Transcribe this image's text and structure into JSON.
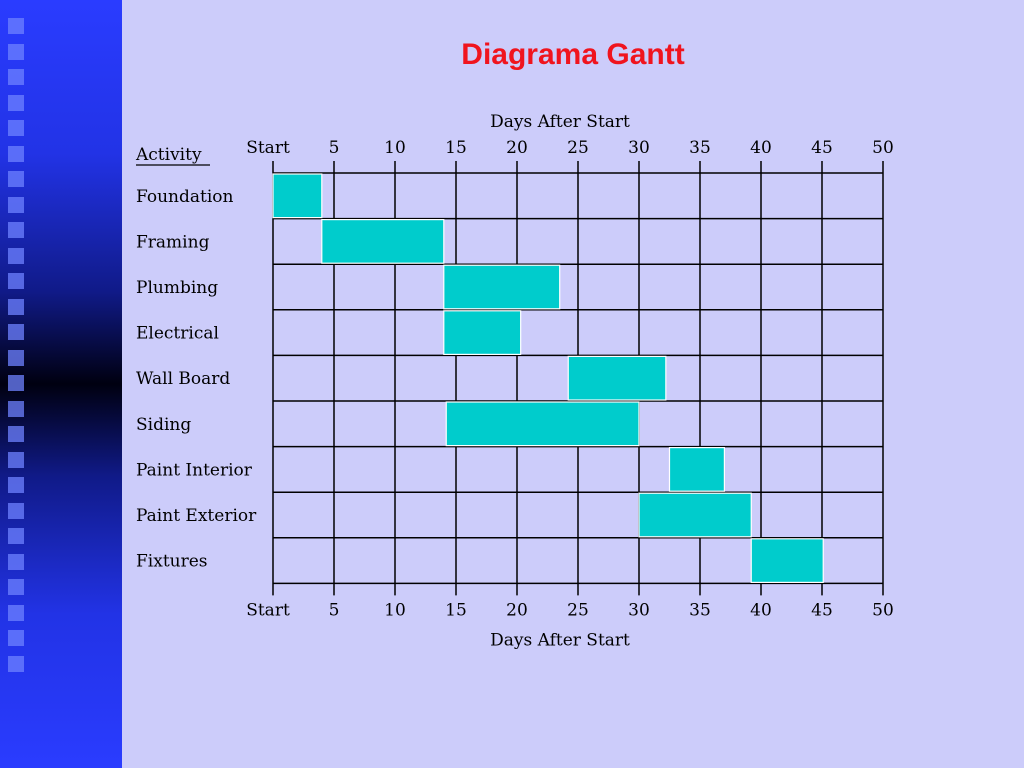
{
  "title": "Diagrama Gantt",
  "colors": {
    "background": "#ccccfa",
    "title": "#f0141e",
    "bar": "#00cccc",
    "sidebar": "#2233e6"
  },
  "chart_data": {
    "type": "gantt",
    "title": "Diagrama Gantt",
    "xlabel": "Days After Start",
    "ylabel": "Activity",
    "xlim": [
      0,
      50
    ],
    "grid": true,
    "tick_labels": [
      "Start",
      "5",
      "10",
      "15",
      "20",
      "25",
      "30",
      "35",
      "40",
      "45",
      "50"
    ],
    "tasks": [
      {
        "name": "Foundation",
        "start": 0,
        "end": 4
      },
      {
        "name": "Framing",
        "start": 4,
        "end": 14
      },
      {
        "name": "Plumbing",
        "start": 14,
        "end": 23.5
      },
      {
        "name": "Electrical",
        "start": 14,
        "end": 20.3
      },
      {
        "name": "Wall Board",
        "start": 24.2,
        "end": 32.2
      },
      {
        "name": "Siding",
        "start": 14.2,
        "end": 30
      },
      {
        "name": "Paint Interior",
        "start": 32.5,
        "end": 37
      },
      {
        "name": "Paint Exterior",
        "start": 30,
        "end": 39.2
      },
      {
        "name": "Fixtures",
        "start": 39.2,
        "end": 45.1
      }
    ]
  }
}
